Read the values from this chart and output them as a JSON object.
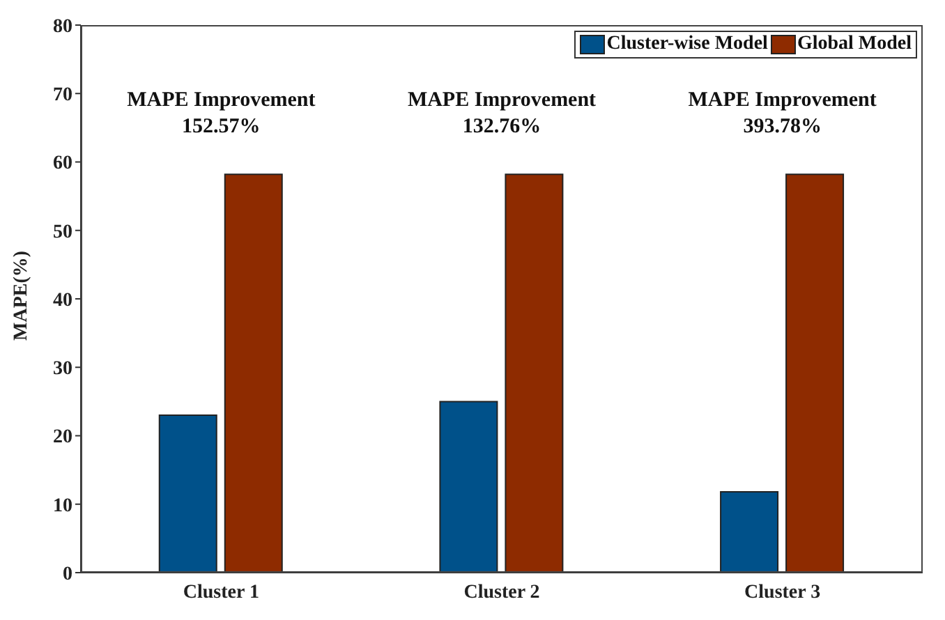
{
  "chart_data": {
    "type": "bar",
    "ylabel": "MAPE(%)",
    "categories": [
      "Cluster 1",
      "Cluster 2",
      "Cluster 3"
    ],
    "series": [
      {
        "name": "Cluster-wise Model",
        "color": "#00518a",
        "values": [
          23,
          25,
          11.8
        ]
      },
      {
        "name": "Global Model",
        "color": "#8e2b00",
        "values": [
          58.2,
          58.2,
          58.2
        ]
      }
    ],
    "ylim": [
      0,
      80
    ],
    "yticks": [
      0,
      10,
      20,
      30,
      40,
      50,
      60,
      70,
      80
    ],
    "grid": false,
    "legend": "top right",
    "annotations": [
      "MAPE Improvement\n152.57%",
      "MAPE Improvement\n132.76%",
      "MAPE Improvement\n393.78%"
    ]
  }
}
